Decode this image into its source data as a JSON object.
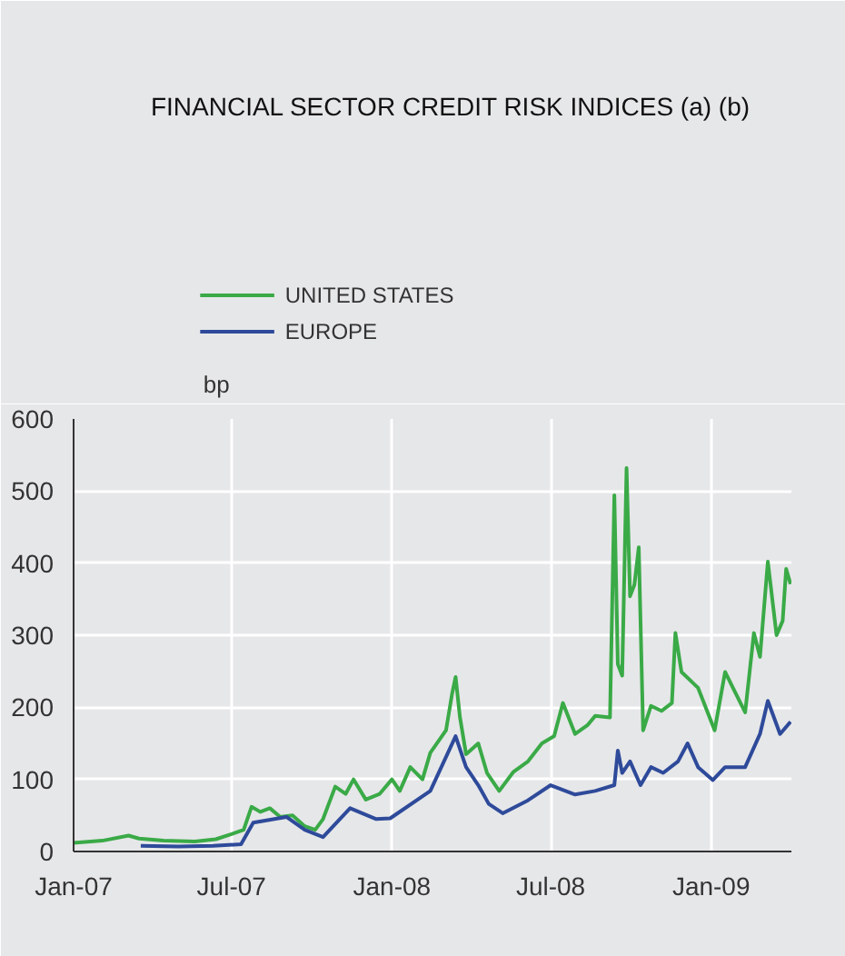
{
  "chart_data": {
    "type": "line",
    "title": "FINANCIAL SECTOR CREDIT RISK INDICES (a) (b)",
    "ylabel": "bp",
    "legend": "top left",
    "grid": true,
    "line_style": "solid",
    "marker": "none",
    "xlim": [
      "2007-01-01",
      "2009-04-03"
    ],
    "ylim": [
      0,
      600
    ],
    "yticks": [
      0,
      100,
      200,
      300,
      400,
      500,
      600
    ],
    "xticks": [
      {
        "value": "2007-01-01",
        "label": "Jan-07"
      },
      {
        "value": "2007-07-01",
        "label": "Jul-07"
      },
      {
        "value": "2008-01-01",
        "label": "Jan-08"
      },
      {
        "value": "2008-07-01",
        "label": "Jul-08"
      },
      {
        "value": "2009-01-01",
        "label": "Jan-09"
      }
    ],
    "series": [
      {
        "name": "UNITED STATES",
        "color": "#3aaa47",
        "x": [
          "2007-01-01",
          "2007-02-03",
          "2007-03-05",
          "2007-03-17",
          "2007-04-14",
          "2007-05-20",
          "2007-06-13",
          "2007-07-01",
          "2007-07-15",
          "2007-07-24",
          "2007-08-03",
          "2007-08-14",
          "2007-08-26",
          "2007-09-09",
          "2007-09-23",
          "2007-10-05",
          "2007-10-14",
          "2007-10-28",
          "2007-11-09",
          "2007-11-18",
          "2007-12-02",
          "2007-12-18",
          "2008-01-01",
          "2008-01-10",
          "2008-01-22",
          "2008-02-05",
          "2008-02-14",
          "2008-03-03",
          "2008-03-10",
          "2008-03-14",
          "2008-03-19",
          "2008-03-26",
          "2008-04-09",
          "2008-04-19",
          "2008-05-03",
          "2008-05-19",
          "2008-06-05",
          "2008-06-21",
          "2008-07-05",
          "2008-07-15",
          "2008-07-29",
          "2008-08-12",
          "2008-08-21",
          "2008-09-07",
          "2008-09-12",
          "2008-09-16",
          "2008-09-21",
          "2008-09-26",
          "2008-09-30",
          "2008-10-05",
          "2008-10-10",
          "2008-10-15",
          "2008-10-24",
          "2008-11-05",
          "2008-11-17",
          "2008-11-21",
          "2008-11-28",
          "2008-12-17",
          "2009-01-05",
          "2009-01-17",
          "2009-01-26",
          "2009-02-09",
          "2009-02-19",
          "2009-02-26",
          "2009-03-07",
          "2009-03-17",
          "2009-03-24",
          "2009-03-28",
          "2009-04-02"
        ],
        "values": [
          12,
          15,
          22,
          18,
          15,
          14,
          17,
          24,
          30,
          62,
          55,
          60,
          48,
          50,
          35,
          30,
          45,
          90,
          80,
          100,
          72,
          80,
          100,
          84,
          117,
          100,
          137,
          168,
          219,
          242,
          186,
          135,
          150,
          109,
          84,
          110,
          125,
          150,
          160,
          206,
          163,
          175,
          188,
          186,
          494,
          260,
          244,
          532,
          354,
          370,
          422,
          168,
          202,
          195,
          206,
          303,
          249,
          227,
          168,
          249,
          227,
          193,
          303,
          270,
          402,
          300,
          320,
          392,
          371
        ]
      },
      {
        "name": "EUROPE",
        "color": "#2e4a9a",
        "x": [
          "2007-03-19",
          "2007-05-01",
          "2007-06-10",
          "2007-07-12",
          "2007-07-26",
          "2007-09-02",
          "2007-09-23",
          "2007-10-14",
          "2007-11-14",
          "2007-12-14",
          "2007-12-30",
          "2008-02-14",
          "2008-03-14",
          "2008-03-26",
          "2008-04-09",
          "2008-04-21",
          "2008-05-07",
          "2008-06-05",
          "2008-07-01",
          "2008-07-29",
          "2008-08-21",
          "2008-09-12",
          "2008-09-16",
          "2008-09-21",
          "2008-09-30",
          "2008-10-12",
          "2008-10-24",
          "2008-11-07",
          "2008-11-24",
          "2008-12-05",
          "2008-12-17",
          "2009-01-03",
          "2009-01-17",
          "2009-02-09",
          "2009-02-26",
          "2009-03-07",
          "2009-03-21",
          "2009-04-02"
        ],
        "values": [
          8,
          7,
          8,
          10,
          40,
          48,
          30,
          20,
          60,
          45,
          46,
          84,
          160,
          117,
          92,
          66,
          53,
          71,
          92,
          79,
          84,
          92,
          140,
          109,
          125,
          92,
          117,
          109,
          125,
          150,
          117,
          99,
          117,
          117,
          163,
          209,
          163,
          180
        ]
      }
    ]
  }
}
